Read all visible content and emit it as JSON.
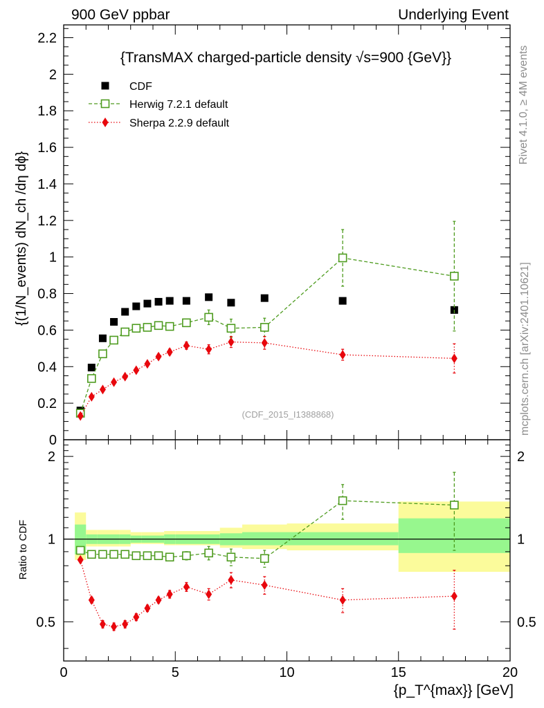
{
  "header": {
    "left": "900 GeV ppbar",
    "right": "Underlying Event"
  },
  "side_labels": {
    "rivet": "Rivet 4.1.0, ≥ 4M events",
    "mcplots": "mcplots.cern.ch [arXiv:2401.10621]"
  },
  "chart_data": {
    "type": "scatter",
    "title": "{TransMAX charged-particle density √s=900 {GeV}}",
    "analysis_tag": "(CDF_2015_I1388868)",
    "xlabel": "{p_T^{max}} [GeV]",
    "ylabel": "{(1/N_events) dN_ch /dη dϕ}",
    "ratio_ylabel": "Ratio to CDF",
    "xlim": [
      0,
      20
    ],
    "ylim": [
      0,
      2.27
    ],
    "ratio_ylim": [
      0.36,
      2.3
    ],
    "xticks": [
      0,
      5,
      10,
      15,
      20
    ],
    "xtick_labels": [
      "0",
      "5",
      "10",
      "15",
      "20"
    ],
    "yticks": [
      0,
      0.2,
      0.4,
      0.6,
      0.8,
      1,
      1.2,
      1.4,
      1.6,
      1.8,
      2,
      2.2
    ],
    "ytick_labels": [
      "0",
      "0.2",
      "0.4",
      "0.6",
      "0.8",
      "1",
      "1.2",
      "1.4",
      "1.6",
      "1.8",
      "2",
      "2.2"
    ],
    "ratio_yticks": [
      0.5,
      1,
      2
    ],
    "ratio_ytick_labels": [
      "0.5",
      "1",
      "2"
    ],
    "legend": [
      "CDF",
      "Herwig 7.2.1 default",
      "Sherpa 2.2.9 default"
    ],
    "bins": [
      [
        0.5,
        1.0
      ],
      [
        1.0,
        1.5
      ],
      [
        1.5,
        2.0
      ],
      [
        2.0,
        2.5
      ],
      [
        2.5,
        3.0
      ],
      [
        3.0,
        3.5
      ],
      [
        3.5,
        4.0
      ],
      [
        4.0,
        4.5
      ],
      [
        4.5,
        5.0
      ],
      [
        5.0,
        6.0
      ],
      [
        6.0,
        7.0
      ],
      [
        7.0,
        8.0
      ],
      [
        8.0,
        10.0
      ],
      [
        10.0,
        15.0
      ],
      [
        15.0,
        20.0
      ]
    ],
    "x": [
      0.75,
      1.25,
      1.75,
      2.25,
      2.75,
      3.25,
      3.75,
      4.25,
      4.75,
      5.5,
      6.5,
      7.5,
      9.0,
      12.5,
      17.5
    ],
    "cdf_band_inner": [
      [
        0.88,
        1.13
      ],
      [
        0.96,
        1.04
      ],
      [
        0.96,
        1.04
      ],
      [
        0.96,
        1.04
      ],
      [
        0.96,
        1.04
      ],
      [
        0.97,
        1.03
      ],
      [
        0.97,
        1.03
      ],
      [
        0.97,
        1.03
      ],
      [
        0.96,
        1.04
      ],
      [
        0.96,
        1.04
      ],
      [
        0.96,
        1.04
      ],
      [
        0.95,
        1.05
      ],
      [
        0.95,
        1.06
      ],
      [
        0.95,
        1.06
      ],
      [
        0.89,
        1.19
      ]
    ],
    "cdf_band_outer": [
      [
        0.84,
        1.25
      ],
      [
        0.94,
        1.08
      ],
      [
        0.94,
        1.08
      ],
      [
        0.94,
        1.08
      ],
      [
        0.94,
        1.08
      ],
      [
        0.96,
        1.06
      ],
      [
        0.96,
        1.06
      ],
      [
        0.96,
        1.06
      ],
      [
        0.95,
        1.07
      ],
      [
        0.95,
        1.07
      ],
      [
        0.95,
        1.07
      ],
      [
        0.93,
        1.1
      ],
      [
        0.92,
        1.13
      ],
      [
        0.91,
        1.14
      ],
      [
        0.76,
        1.37
      ]
    ],
    "series": [
      {
        "name": "CDF",
        "color": "#000000",
        "marker": "square-filled",
        "values": [
          0.16,
          0.395,
          0.555,
          0.645,
          0.7,
          0.73,
          0.745,
          0.755,
          0.76,
          0.76,
          0.78,
          0.75,
          0.775,
          0.76,
          0.71
        ]
      },
      {
        "name": "Herwig 7.2.1 default",
        "color": "#4d9b1e",
        "marker": "square-open",
        "line": "dashed",
        "values": [
          0.145,
          0.335,
          0.47,
          0.545,
          0.59,
          0.61,
          0.615,
          0.625,
          0.62,
          0.64,
          0.67,
          0.61,
          0.615,
          0.995,
          0.895
        ],
        "errors": [
          0.0,
          0.015,
          0.015,
          0.015,
          0.015,
          0.015,
          0.015,
          0.015,
          0.015,
          0.02,
          0.04,
          0.05,
          0.05,
          0.155,
          0.3
        ],
        "ratio": [
          0.91,
          0.88,
          0.88,
          0.88,
          0.88,
          0.87,
          0.87,
          0.87,
          0.86,
          0.87,
          0.89,
          0.86,
          0.85,
          1.38,
          1.33
        ],
        "ratio_errors": [
          0.0,
          0.02,
          0.02,
          0.02,
          0.02,
          0.02,
          0.02,
          0.02,
          0.02,
          0.03,
          0.05,
          0.06,
          0.06,
          0.2,
          0.42
        ]
      },
      {
        "name": "Sherpa 2.2.9 default",
        "color": "#e8070d",
        "marker": "diamond-filled",
        "line": "dotted",
        "values": [
          0.13,
          0.235,
          0.275,
          0.315,
          0.345,
          0.38,
          0.415,
          0.455,
          0.48,
          0.515,
          0.495,
          0.535,
          0.53,
          0.465,
          0.445
        ],
        "errors": [
          0.0,
          0.01,
          0.01,
          0.01,
          0.01,
          0.01,
          0.012,
          0.014,
          0.016,
          0.02,
          0.025,
          0.03,
          0.035,
          0.03,
          0.08
        ],
        "ratio": [
          0.84,
          0.6,
          0.49,
          0.48,
          0.49,
          0.52,
          0.56,
          0.6,
          0.63,
          0.67,
          0.63,
          0.71,
          0.68,
          0.6,
          0.62
        ],
        "ratio_errors": [
          0.0,
          0.015,
          0.015,
          0.015,
          0.015,
          0.015,
          0.015,
          0.015,
          0.02,
          0.025,
          0.03,
          0.045,
          0.05,
          0.06,
          0.15
        ]
      }
    ]
  }
}
